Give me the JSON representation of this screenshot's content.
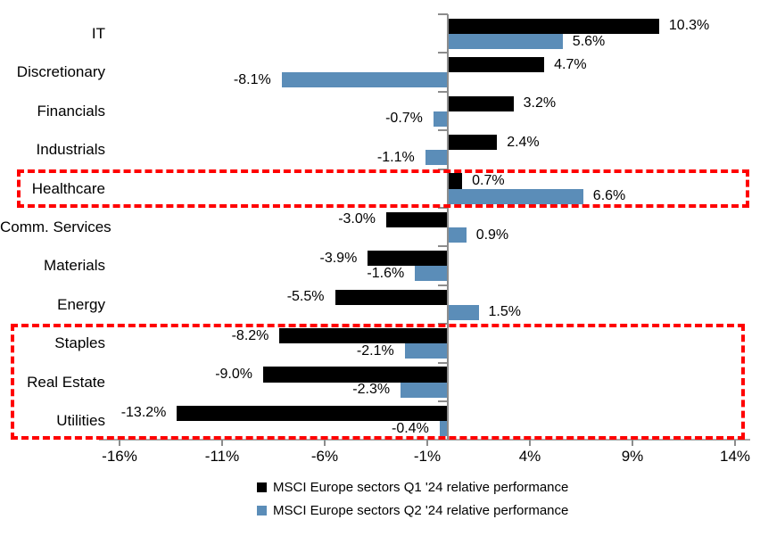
{
  "chart_data": {
    "type": "bar",
    "orientation": "horizontal",
    "title": "",
    "categories": [
      "IT",
      "Discretionary",
      "Financials",
      "Industrials",
      "Healthcare",
      "Comm. Services",
      "Materials",
      "Energy",
      "Staples",
      "Real Estate",
      "Utilities"
    ],
    "series": [
      {
        "name": "MSCI Europe sectors Q1 '24 relative performance",
        "color": "#000000",
        "values": [
          10.3,
          4.7,
          3.2,
          2.4,
          0.7,
          -3.0,
          -3.9,
          -5.5,
          -8.2,
          -9.0,
          -13.2
        ]
      },
      {
        "name": "MSCI Europe sectors Q2 '24 relative performance",
        "color": "#5B8DB8",
        "values": [
          5.6,
          -8.1,
          -0.7,
          -1.1,
          6.6,
          0.9,
          -1.6,
          1.5,
          -2.1,
          -2.3,
          -0.4
        ]
      }
    ],
    "value_labels": [
      [
        "10.3%",
        "4.7%",
        "3.2%",
        "2.4%",
        "0.7%",
        "-3.0%",
        "-3.9%",
        "-5.5%",
        "-8.2%",
        "-9.0%",
        "-13.2%"
      ],
      [
        "5.6%",
        "-8.1%",
        "-0.7%",
        "-1.1%",
        "6.6%",
        "0.9%",
        "-1.6%",
        "1.5%",
        "-2.1%",
        "-2.3%",
        "-0.4%"
      ]
    ],
    "x_axis": {
      "tick_labels": [
        "-16%",
        "-11%",
        "-6%",
        "-1%",
        "4%",
        "9%",
        "14%"
      ],
      "tick_values": [
        -16,
        -11,
        -6,
        -1,
        4,
        9,
        14
      ],
      "min": -17,
      "max": 14.7,
      "unit": "%"
    },
    "y_axis": {
      "label": ""
    },
    "grid": false,
    "legend_position": "bottom",
    "legend": [
      {
        "marker_color": "#000000",
        "label": "MSCI Europe sectors Q1 '24 relative performance"
      },
      {
        "marker_color": "#5B8DB8",
        "label": "MSCI Europe sectors Q2 '24 relative performance"
      }
    ],
    "highlight_boxes": [
      {
        "color": "#ff0000",
        "style": "dashed",
        "rows": [
          "Healthcare"
        ],
        "row_start": 4,
        "row_end": 4
      },
      {
        "color": "#ff0000",
        "style": "dashed",
        "rows": [
          "Staples",
          "Real Estate",
          "Utilities"
        ],
        "row_start": 8,
        "row_end": 10
      }
    ],
    "colors": {
      "series_q1": "#000000",
      "series_q2": "#5B8DB8",
      "highlight": "#ff0000",
      "axis": "#8c8c8c",
      "background": "#ffffff"
    }
  }
}
